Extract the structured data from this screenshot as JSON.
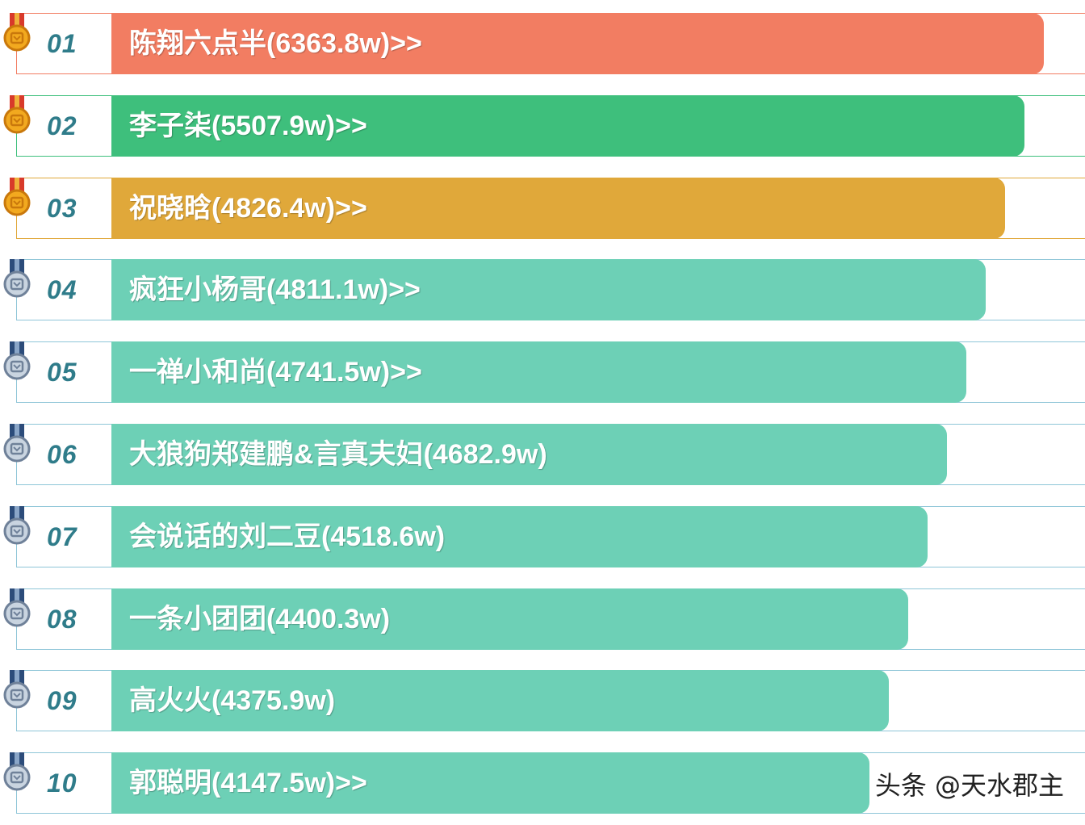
{
  "chart_data": {
    "type": "bar",
    "orientation": "horizontal",
    "categories": [
      "01",
      "02",
      "03",
      "04",
      "05",
      "06",
      "07",
      "08",
      "09",
      "10"
    ],
    "labels": [
      "陈翔六点半(6363.8w)>>",
      "李子柒(5507.9w)>>",
      "祝晓晗(4826.4w)>>",
      "疯狂小杨哥(4811.1w)>>",
      "一禅小和尚(4741.5w)>>",
      "大狼狗郑建鹏&言真夫妇(4682.9w)",
      "会说话的刘二豆(4518.6w)",
      "一条小团团(4400.3w)",
      "高火火(4375.9w)",
      "郭聪明(4147.5w)>>"
    ],
    "values": [
      6363.8,
      5507.9,
      4826.4,
      4811.1,
      4741.5,
      4682.9,
      4518.6,
      4400.3,
      4375.9,
      4147.5
    ],
    "unit": "w",
    "colors": [
      "#f27d62",
      "#3ebf7c",
      "#e0a83a",
      "#6dd0b6",
      "#6dd0b6",
      "#6dd0b6",
      "#6dd0b6",
      "#6dd0b6",
      "#6dd0b6",
      "#6dd0b6"
    ],
    "medals": [
      "gold-medal-icon",
      "gold-medal-icon",
      "gold-medal-icon",
      "silver-medal-icon",
      "silver-medal-icon",
      "silver-medal-icon",
      "silver-medal-icon",
      "silver-medal-icon",
      "silver-medal-icon",
      "silver-medal-icon"
    ]
  },
  "watermark": "头条 @天水郡主"
}
